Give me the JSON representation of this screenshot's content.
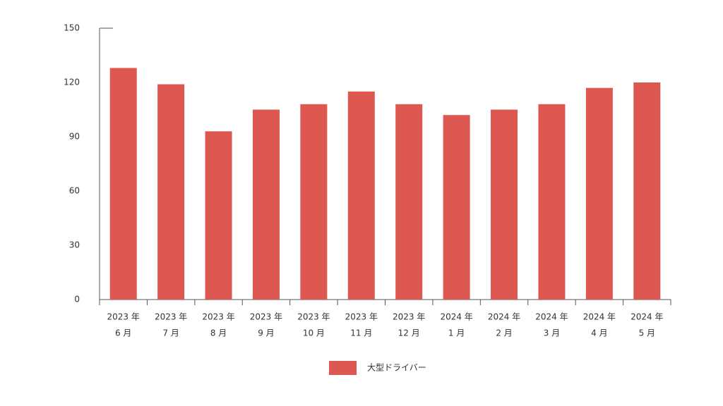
{
  "chart_data": {
    "type": "bar",
    "categories": [
      [
        "2023 年",
        "6 月"
      ],
      [
        "2023 年",
        "7 月"
      ],
      [
        "2023 年",
        "8 月"
      ],
      [
        "2023 年",
        "9 月"
      ],
      [
        "2023 年",
        "10 月"
      ],
      [
        "2023 年",
        "11 月"
      ],
      [
        "2023 年",
        "12 月"
      ],
      [
        "2024 年",
        "1 月"
      ],
      [
        "2024 年",
        "2 月"
      ],
      [
        "2024 年",
        "3 月"
      ],
      [
        "2024 年",
        "4 月"
      ],
      [
        "2024 年",
        "5 月"
      ]
    ],
    "series": [
      {
        "name": "大型ドライバー",
        "color": "#dc5850",
        "values": [
          128,
          119,
          93,
          105,
          108,
          115,
          108,
          102,
          105,
          108,
          117,
          120
        ]
      }
    ],
    "ylim": [
      0,
      150
    ],
    "yticks": [
      0,
      30,
      60,
      90,
      120,
      150
    ],
    "grid": false,
    "legend": "bottom"
  }
}
